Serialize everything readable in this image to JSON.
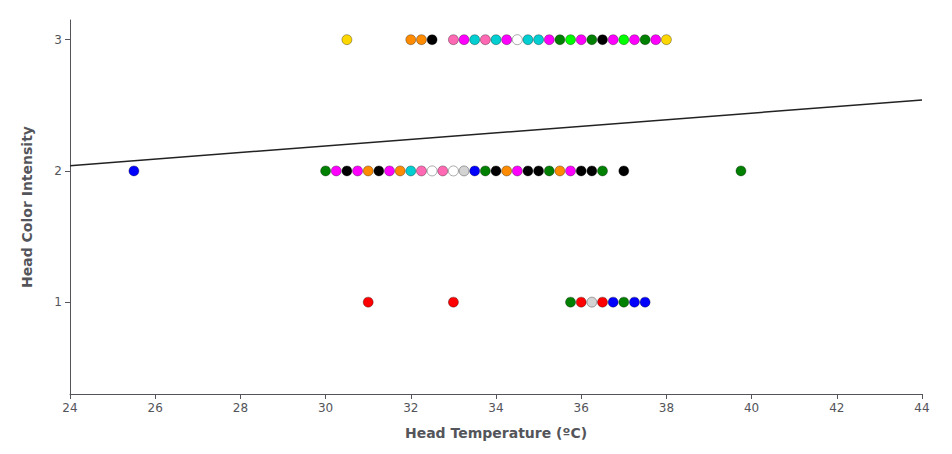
{
  "chart_data": {
    "type": "scatter",
    "xlabel": "Head Temperature (ºC)",
    "ylabel": "Head Color Intensity",
    "xlim": [
      24,
      44
    ],
    "ylim": [
      0.3,
      3.15
    ],
    "xticks": [
      24,
      26,
      28,
      30,
      32,
      34,
      36,
      38,
      40,
      42,
      44
    ],
    "yticks": [
      1,
      2,
      3
    ],
    "grid": false,
    "series": [
      {
        "type": "scatter",
        "marker": "circle",
        "x": [
          25.5,
          30.5,
          31.0,
          32.0,
          32.25,
          32.5,
          33.0,
          33.25,
          33.5,
          33.75,
          34.0,
          34.25,
          34.5,
          34.75,
          35.0,
          35.25,
          35.5,
          35.75,
          36.0,
          36.25,
          36.5,
          36.75,
          37.0,
          37.25,
          37.5,
          37.75,
          38.0,
          30.0,
          30.25,
          30.5,
          30.75,
          31.0,
          31.25,
          31.5,
          31.75,
          32.0,
          32.25,
          32.5,
          32.75,
          33.0,
          33.25,
          33.5,
          33.75,
          34.0,
          34.25,
          34.5,
          34.75,
          35.0,
          35.25,
          35.5,
          35.75,
          36.0,
          36.25,
          36.5,
          37.0,
          39.75,
          33.0,
          35.75,
          36.0,
          36.25,
          36.5,
          36.75,
          37.0,
          37.25,
          37.5
        ],
        "values": [
          2,
          3,
          1,
          3,
          3,
          3,
          3,
          3,
          3,
          3,
          3,
          3,
          3,
          3,
          3,
          3,
          3,
          3,
          3,
          3,
          3,
          3,
          3,
          3,
          3,
          3,
          3,
          2,
          2,
          2,
          2,
          2,
          2,
          2,
          2,
          2,
          2,
          2,
          2,
          2,
          2,
          2,
          2,
          2,
          2,
          2,
          2,
          2,
          2,
          2,
          2,
          2,
          2,
          2,
          2,
          2,
          1,
          1,
          1,
          1,
          1,
          1,
          1,
          1,
          1
        ],
        "colors": [
          "#0000FF",
          "#FFD700",
          "#FF0000",
          "#FF8C00",
          "#FF8C00",
          "#000000",
          "#FF69B4",
          "#FF00FF",
          "#00CED1",
          "#FF69B4",
          "#00CED1",
          "#FF00FF",
          "#FFFFFF",
          "#00CED1",
          "#00CED1",
          "#FF00FF",
          "#008000",
          "#00FF00",
          "#FF00FF",
          "#008000",
          "#000000",
          "#FF00FF",
          "#00FF00",
          "#FF00FF",
          "#008000",
          "#FF00FF",
          "#FFD700",
          "#008000",
          "#FF00FF",
          "#000000",
          "#FF00FF",
          "#FF8C00",
          "#000000",
          "#FF00FF",
          "#FF8C00",
          "#00CED1",
          "#FF69B4",
          "#FFFFFF",
          "#FF69B4",
          "#FFFFFF",
          "#D3D3D3",
          "#0000FF",
          "#008000",
          "#000000",
          "#FF8C00",
          "#FF00FF",
          "#000000",
          "#000000",
          "#008000",
          "#FF8C00",
          "#FF00FF",
          "#000000",
          "#000000",
          "#008000",
          "#000000",
          "#008000",
          "#FF0000",
          "#008000",
          "#FF0000",
          "#D3D3D3",
          "#FF0000",
          "#0000FF",
          "#008000",
          "#0000FF",
          "#0000FF"
        ]
      },
      {
        "type": "line",
        "line_style": "solid",
        "x": [
          24,
          44
        ],
        "values": [
          2.04,
          2.54
        ],
        "color": "#222222"
      }
    ]
  }
}
